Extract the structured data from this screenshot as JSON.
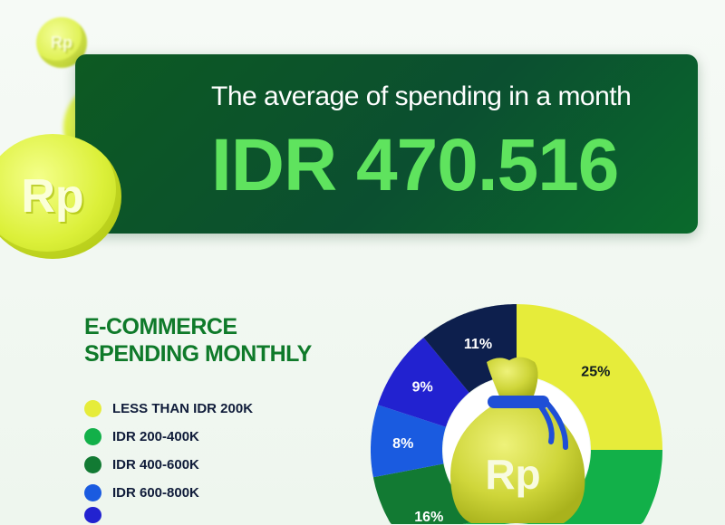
{
  "banner": {
    "subtitle": "The average of spending in a month",
    "amount": "IDR 470.516"
  },
  "coins": {
    "symbol": "Rp"
  },
  "chart_data": {
    "type": "pie",
    "donut": true,
    "title": "E-COMMERCE SPENDING MONTHLY",
    "title_lines": [
      "E-COMMERCE",
      "SPENDING MONTHLY"
    ],
    "legend_position": "left",
    "center_icon": "money-bag-icon",
    "center_symbol": "Rp",
    "categories": [
      "LESS THAN IDR 200K",
      "IDR 200-400K",
      "IDR 400-600K",
      "IDR 600-800K",
      "",
      ""
    ],
    "values": [
      25,
      31,
      16,
      8,
      9,
      11
    ],
    "labels": [
      "25%",
      "",
      "16%",
      "8%",
      "9%",
      "11%"
    ],
    "colors": [
      "#e6ec3a",
      "#12b049",
      "#127a33",
      "#1a5be0",
      "#2222d0",
      "#0d1f4d"
    ],
    "label_colors": [
      "#101c20",
      "#ffffff",
      "#ffffff",
      "#ffffff",
      "#ffffff",
      "#ffffff"
    ]
  }
}
